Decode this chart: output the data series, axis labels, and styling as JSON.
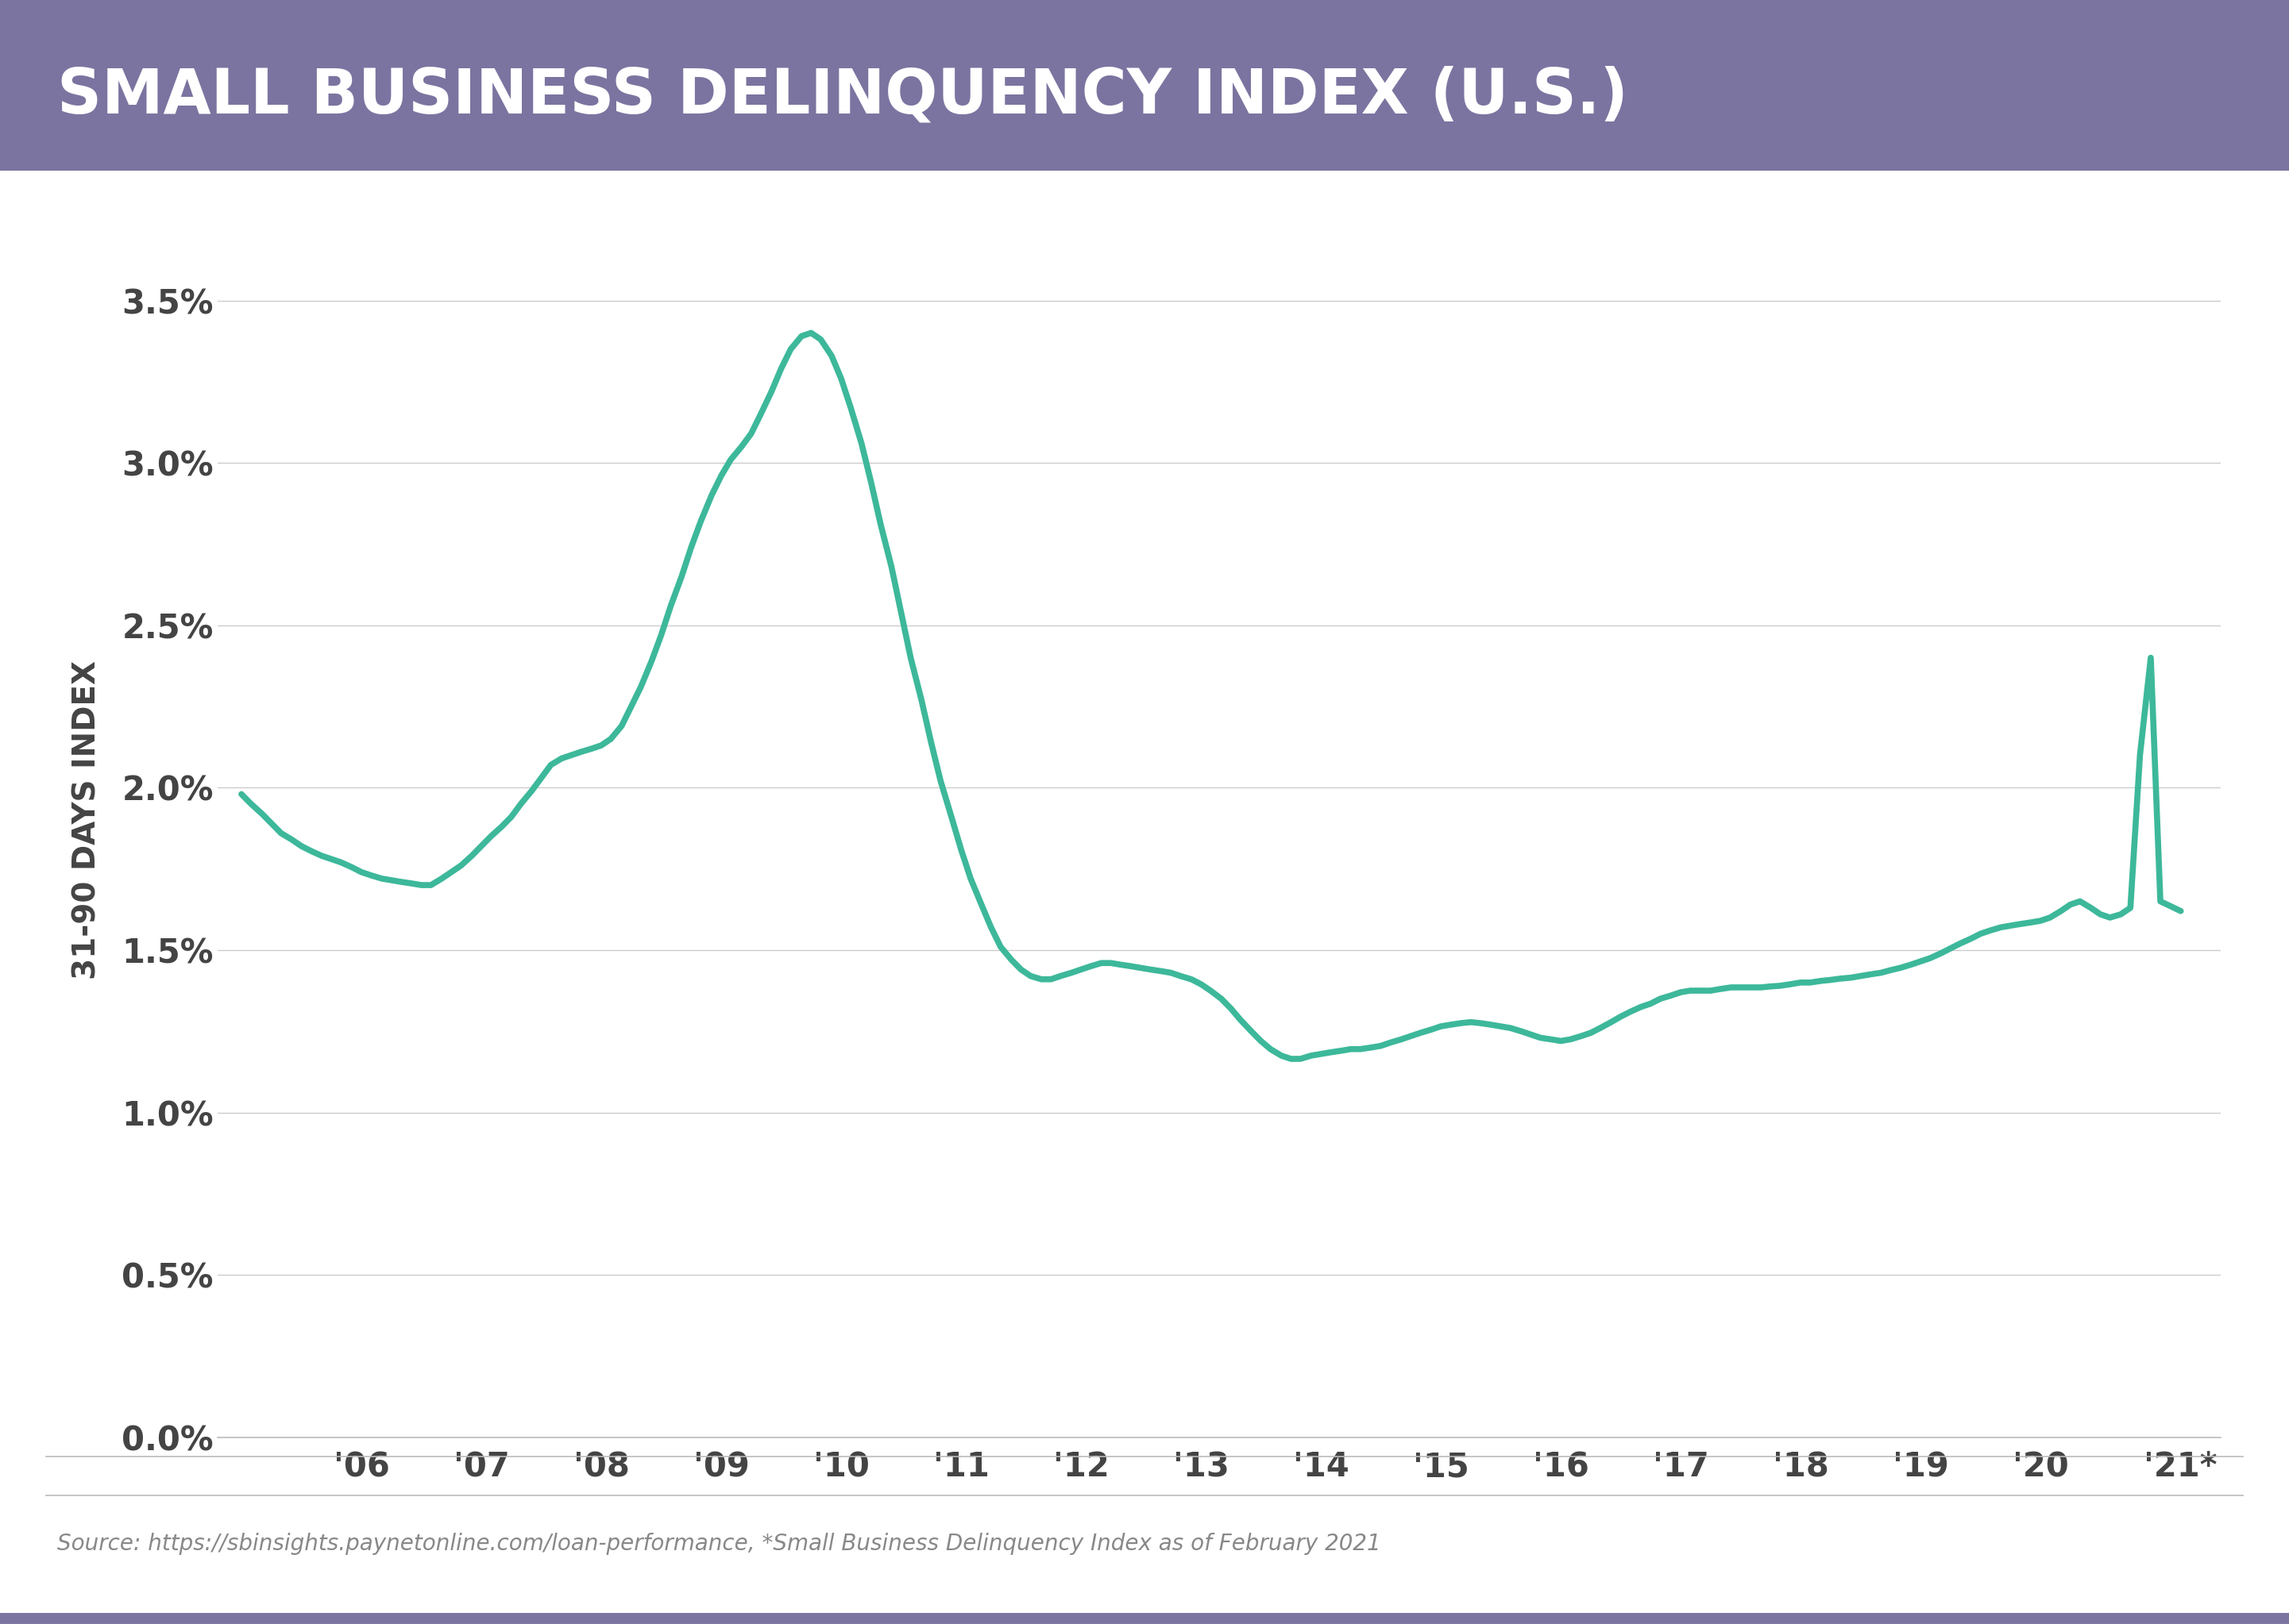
{
  "title": "SMALL BUSINESS DELINQUENCY INDEX (U.S.)",
  "title_bg_color": "#7b74a0",
  "title_text_color": "#ffffff",
  "ylabel": "31-90 DAYS INDEX",
  "source_text": "Source: https://sbinsights.paynetonline.com/loan-performance, *Small Business Delinquency Index as of February 2021",
  "line_color": "#3db89a",
  "line_width": 5.5,
  "bg_color": "#ffffff",
  "grid_color": "#cccccc",
  "tick_label_color": "#444444",
  "ylabel_color": "#444444",
  "ylim": [
    0.0,
    0.038
  ],
  "yticks": [
    0.0,
    0.005,
    0.01,
    0.015,
    0.02,
    0.025,
    0.03,
    0.035
  ],
  "ytick_labels": [
    "0.0%",
    "0.5%",
    "1.0%",
    "1.5%",
    "2.0%",
    "2.5%",
    "3.0%",
    "3.5%"
  ],
  "xtick_labels": [
    "'06",
    "'07",
    "'08",
    "'09",
    "'10",
    "'11",
    "'12",
    "'13",
    "'14",
    "'15",
    "'16",
    "'17",
    "'18",
    "'19",
    "'20",
    "'21*"
  ],
  "data_x": [
    2005.0,
    2005.08,
    2005.17,
    2005.25,
    2005.33,
    2005.42,
    2005.5,
    2005.58,
    2005.67,
    2005.75,
    2005.83,
    2005.92,
    2006.0,
    2006.08,
    2006.17,
    2006.25,
    2006.33,
    2006.42,
    2006.5,
    2006.58,
    2006.67,
    2006.75,
    2006.83,
    2006.92,
    2007.0,
    2007.08,
    2007.17,
    2007.25,
    2007.33,
    2007.42,
    2007.5,
    2007.58,
    2007.67,
    2007.75,
    2007.83,
    2007.92,
    2008.0,
    2008.08,
    2008.17,
    2008.25,
    2008.33,
    2008.42,
    2008.5,
    2008.58,
    2008.67,
    2008.75,
    2008.83,
    2008.92,
    2009.0,
    2009.08,
    2009.17,
    2009.25,
    2009.33,
    2009.42,
    2009.5,
    2009.58,
    2009.67,
    2009.75,
    2009.83,
    2009.92,
    2010.0,
    2010.08,
    2010.17,
    2010.25,
    2010.33,
    2010.42,
    2010.5,
    2010.58,
    2010.67,
    2010.75,
    2010.83,
    2010.92,
    2011.0,
    2011.08,
    2011.17,
    2011.25,
    2011.33,
    2011.42,
    2011.5,
    2011.58,
    2011.67,
    2011.75,
    2011.83,
    2011.92,
    2012.0,
    2012.08,
    2012.17,
    2012.25,
    2012.33,
    2012.42,
    2012.5,
    2012.58,
    2012.67,
    2012.75,
    2012.83,
    2012.92,
    2013.0,
    2013.08,
    2013.17,
    2013.25,
    2013.33,
    2013.42,
    2013.5,
    2013.58,
    2013.67,
    2013.75,
    2013.83,
    2013.92,
    2014.0,
    2014.08,
    2014.17,
    2014.25,
    2014.33,
    2014.42,
    2014.5,
    2014.58,
    2014.67,
    2014.75,
    2014.83,
    2014.92,
    2015.0,
    2015.08,
    2015.17,
    2015.25,
    2015.33,
    2015.42,
    2015.5,
    2015.58,
    2015.67,
    2015.75,
    2015.83,
    2015.92,
    2016.0,
    2016.08,
    2016.17,
    2016.25,
    2016.33,
    2016.42,
    2016.5,
    2016.58,
    2016.67,
    2016.75,
    2016.83,
    2016.92,
    2017.0,
    2017.08,
    2017.17,
    2017.25,
    2017.33,
    2017.42,
    2017.5,
    2017.58,
    2017.67,
    2017.75,
    2017.83,
    2017.92,
    2018.0,
    2018.08,
    2018.17,
    2018.25,
    2018.33,
    2018.42,
    2018.5,
    2018.58,
    2018.67,
    2018.75,
    2018.83,
    2018.92,
    2019.0,
    2019.08,
    2019.17,
    2019.25,
    2019.33,
    2019.42,
    2019.5,
    2019.58,
    2019.67,
    2019.75,
    2019.83,
    2019.92,
    2020.0,
    2020.08,
    2020.17,
    2020.25,
    2020.33,
    2020.42,
    2020.5,
    2020.58,
    2020.67,
    2020.75,
    2020.83,
    2020.92,
    2021.0,
    2021.17
  ],
  "data_y": [
    0.0198,
    0.0195,
    0.0192,
    0.0189,
    0.0186,
    0.0184,
    0.0182,
    0.01805,
    0.0179,
    0.0178,
    0.0177,
    0.01755,
    0.0174,
    0.0173,
    0.0172,
    0.01715,
    0.0171,
    0.01705,
    0.017,
    0.017,
    0.0172,
    0.0174,
    0.0176,
    0.0179,
    0.0182,
    0.0185,
    0.0188,
    0.0191,
    0.0195,
    0.0199,
    0.0203,
    0.0207,
    0.0209,
    0.021,
    0.0211,
    0.0212,
    0.0213,
    0.0215,
    0.0219,
    0.0225,
    0.0231,
    0.0239,
    0.0247,
    0.0256,
    0.0265,
    0.0274,
    0.0282,
    0.029,
    0.0296,
    0.0301,
    0.0305,
    0.0309,
    0.0315,
    0.0322,
    0.0329,
    0.0335,
    0.0339,
    0.034,
    0.0338,
    0.0333,
    0.0326,
    0.0317,
    0.0306,
    0.0294,
    0.0281,
    0.0268,
    0.0254,
    0.024,
    0.0227,
    0.0214,
    0.0202,
    0.0191,
    0.0181,
    0.0172,
    0.0164,
    0.0157,
    0.0151,
    0.0147,
    0.0144,
    0.0142,
    0.0141,
    0.0141,
    0.0142,
    0.0143,
    0.0144,
    0.0145,
    0.0146,
    0.0146,
    0.01455,
    0.0145,
    0.01445,
    0.0144,
    0.01435,
    0.0143,
    0.0142,
    0.0141,
    0.01395,
    0.01375,
    0.0135,
    0.0132,
    0.01285,
    0.0125,
    0.0122,
    0.01195,
    0.01175,
    0.01165,
    0.01165,
    0.01175,
    0.0118,
    0.01185,
    0.0119,
    0.01195,
    0.01195,
    0.012,
    0.01205,
    0.01215,
    0.01225,
    0.01235,
    0.01245,
    0.01255,
    0.01265,
    0.0127,
    0.01275,
    0.01278,
    0.01275,
    0.0127,
    0.01265,
    0.0126,
    0.0125,
    0.0124,
    0.0123,
    0.01225,
    0.0122,
    0.01225,
    0.01235,
    0.01245,
    0.0126,
    0.01278,
    0.01295,
    0.0131,
    0.01325,
    0.01335,
    0.0135,
    0.0136,
    0.0137,
    0.01375,
    0.01375,
    0.01375,
    0.0138,
    0.01385,
    0.01385,
    0.01385,
    0.01385,
    0.01388,
    0.0139,
    0.01395,
    0.014,
    0.014,
    0.01405,
    0.01408,
    0.01412,
    0.01415,
    0.0142,
    0.01425,
    0.0143,
    0.01438,
    0.01445,
    0.01455,
    0.01465,
    0.01475,
    0.0149,
    0.01505,
    0.0152,
    0.01535,
    0.0155,
    0.0156,
    0.0157,
    0.01575,
    0.0158,
    0.01585,
    0.0159,
    0.016,
    0.0162,
    0.0164,
    0.0165,
    0.0163,
    0.0161,
    0.016,
    0.0161,
    0.0163,
    0.021,
    0.024,
    0.0165,
    0.0162
  ]
}
